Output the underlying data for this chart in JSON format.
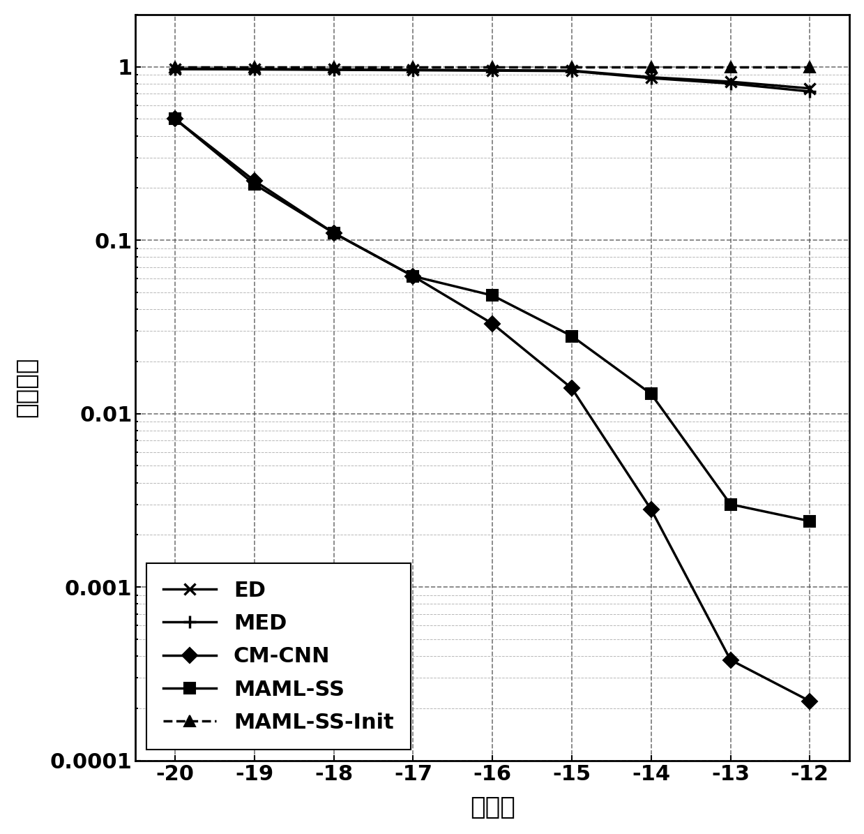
{
  "x": [
    -20,
    -19,
    -18,
    -17,
    -16,
    -15,
    -14,
    -13,
    -12
  ],
  "ED": [
    0.97,
    0.97,
    0.965,
    0.96,
    0.955,
    0.95,
    0.87,
    0.82,
    0.75
  ],
  "MED": [
    0.97,
    0.965,
    0.96,
    0.955,
    0.95,
    0.945,
    0.86,
    0.8,
    0.72
  ],
  "CM_CNN": [
    0.5,
    0.22,
    0.11,
    0.062,
    0.033,
    0.014,
    0.0028,
    0.00038,
    0.00022
  ],
  "MAML_SS": [
    0.5,
    0.21,
    0.11,
    0.062,
    0.048,
    0.028,
    0.013,
    0.003,
    0.0024
  ],
  "MAML_SS_Init": [
    0.999,
    0.999,
    0.999,
    0.999,
    0.999,
    0.999,
    0.999,
    0.999,
    0.999
  ],
  "xlabel": "信噪比",
  "ylabel": "漏检概率",
  "xlim": [
    -20.5,
    -11.5
  ],
  "ylim": [
    0.0001,
    2.0
  ],
  "xticks": [
    -20,
    -19,
    -18,
    -17,
    -16,
    -15,
    -14,
    -13,
    -12
  ],
  "yticks": [
    0.0001,
    0.001,
    0.01,
    0.1,
    1
  ],
  "ytick_labels": [
    "0.0001",
    "0.001",
    "0.01",
    "0.1",
    "1"
  ],
  "legend_labels": [
    "ED",
    "MED",
    "CM-CNN",
    "MAML-SS",
    "MAML-SS-Init"
  ],
  "line_color": "#000000",
  "linewidth": 2.5,
  "markersize": 11,
  "fontsize_label": 26,
  "fontsize_tick": 22,
  "fontsize_legend": 22,
  "bg_color": "#ffffff"
}
